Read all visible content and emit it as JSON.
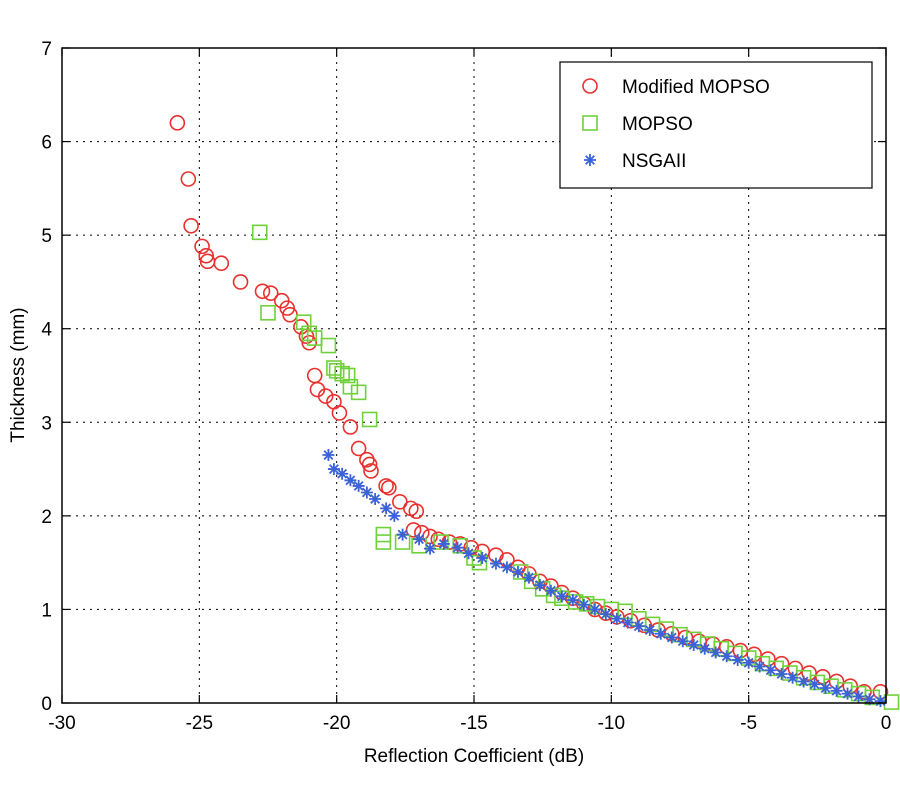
{
  "chart_data": {
    "type": "scatter",
    "title": "",
    "xlabel": "Reflection Coefficient (dB)",
    "ylabel": "Thickness (mm)",
    "xlim": [
      -30,
      0
    ],
    "ylim": [
      0,
      7
    ],
    "xticks": [
      -30,
      -25,
      -20,
      -15,
      -10,
      -5,
      0
    ],
    "yticks": [
      0,
      1,
      2,
      3,
      4,
      5,
      6,
      7
    ],
    "xtick_labels": [
      "-30",
      "-25",
      "-20",
      "-15",
      "-10",
      "-5",
      "0"
    ],
    "ytick_labels": [
      "0",
      "1",
      "2",
      "3",
      "4",
      "5",
      "6",
      "7"
    ],
    "grid": true,
    "legend_position": "top-right",
    "series": [
      {
        "name": "Modified MOPSO",
        "marker": "circle",
        "color": "#e8312f",
        "points": [
          [
            -25.8,
            6.2
          ],
          [
            -25.4,
            5.6
          ],
          [
            -25.3,
            5.1
          ],
          [
            -24.9,
            4.88
          ],
          [
            -24.75,
            4.78
          ],
          [
            -24.7,
            4.72
          ],
          [
            -24.2,
            4.7
          ],
          [
            -23.5,
            4.5
          ],
          [
            -22.7,
            4.4
          ],
          [
            -22.4,
            4.38
          ],
          [
            -22.0,
            4.3
          ],
          [
            -21.8,
            4.22
          ],
          [
            -21.7,
            4.15
          ],
          [
            -21.3,
            4.02
          ],
          [
            -21.1,
            3.92
          ],
          [
            -21.0,
            3.85
          ],
          [
            -20.8,
            3.5
          ],
          [
            -20.7,
            3.35
          ],
          [
            -20.4,
            3.28
          ],
          [
            -20.1,
            3.22
          ],
          [
            -19.9,
            3.1
          ],
          [
            -19.5,
            2.95
          ],
          [
            -19.2,
            2.72
          ],
          [
            -18.9,
            2.6
          ],
          [
            -18.8,
            2.55
          ],
          [
            -18.75,
            2.48
          ],
          [
            -18.2,
            2.32
          ],
          [
            -18.1,
            2.3
          ],
          [
            -17.7,
            2.15
          ],
          [
            -17.3,
            2.08
          ],
          [
            -17.1,
            2.05
          ],
          [
            -17.2,
            1.85
          ],
          [
            -16.9,
            1.82
          ],
          [
            -16.6,
            1.78
          ],
          [
            -16.3,
            1.75
          ],
          [
            -15.9,
            1.72
          ],
          [
            -15.5,
            1.7
          ],
          [
            -15.1,
            1.66
          ],
          [
            -14.7,
            1.62
          ],
          [
            -14.2,
            1.58
          ],
          [
            -13.8,
            1.53
          ],
          [
            -13.4,
            1.45
          ],
          [
            -13.0,
            1.38
          ],
          [
            -12.6,
            1.3
          ],
          [
            -12.2,
            1.25
          ],
          [
            -11.8,
            1.18
          ],
          [
            -11.4,
            1.12
          ],
          [
            -11.0,
            1.06
          ],
          [
            -10.6,
            1.0
          ],
          [
            -10.2,
            0.96
          ],
          [
            -9.8,
            0.92
          ],
          [
            -9.3,
            0.88
          ],
          [
            -8.8,
            0.83
          ],
          [
            -8.3,
            0.78
          ],
          [
            -7.8,
            0.74
          ],
          [
            -7.3,
            0.7
          ],
          [
            -6.8,
            0.66
          ],
          [
            -6.3,
            0.63
          ],
          [
            -5.8,
            0.6
          ],
          [
            -5.3,
            0.56
          ],
          [
            -4.8,
            0.52
          ],
          [
            -4.3,
            0.47
          ],
          [
            -3.8,
            0.42
          ],
          [
            -3.3,
            0.37
          ],
          [
            -2.8,
            0.32
          ],
          [
            -2.3,
            0.28
          ],
          [
            -1.8,
            0.23
          ],
          [
            -1.3,
            0.18
          ],
          [
            -0.8,
            0.12
          ],
          [
            -0.2,
            0.12
          ]
        ]
      },
      {
        "name": "MOPSO",
        "marker": "square",
        "color": "#6fd13a",
        "points": [
          [
            -22.8,
            5.03
          ],
          [
            -22.5,
            4.17
          ],
          [
            -21.2,
            4.07
          ],
          [
            -21.0,
            3.95
          ],
          [
            -20.8,
            3.9
          ],
          [
            -20.3,
            3.82
          ],
          [
            -20.1,
            3.58
          ],
          [
            -20.0,
            3.55
          ],
          [
            -19.8,
            3.52
          ],
          [
            -19.6,
            3.5
          ],
          [
            -19.5,
            3.38
          ],
          [
            -19.2,
            3.32
          ],
          [
            -18.8,
            3.03
          ],
          [
            -18.3,
            1.8
          ],
          [
            -18.3,
            1.72
          ],
          [
            -17.6,
            1.72
          ],
          [
            -17.0,
            1.68
          ],
          [
            -16.2,
            1.72
          ],
          [
            -15.5,
            1.68
          ],
          [
            -15.0,
            1.55
          ],
          [
            -14.8,
            1.5
          ],
          [
            -13.3,
            1.4
          ],
          [
            -12.9,
            1.3
          ],
          [
            -12.5,
            1.22
          ],
          [
            -12.1,
            1.15
          ],
          [
            -11.8,
            1.12
          ],
          [
            -11.3,
            1.08
          ],
          [
            -10.9,
            1.06
          ],
          [
            -10.5,
            1.03
          ],
          [
            -10.0,
            1.0
          ],
          [
            -9.5,
            0.98
          ],
          [
            -9.0,
            0.9
          ],
          [
            -8.5,
            0.84
          ],
          [
            -8.0,
            0.79
          ],
          [
            -7.5,
            0.73
          ],
          [
            -7.0,
            0.68
          ],
          [
            -6.5,
            0.63
          ],
          [
            -6.0,
            0.58
          ],
          [
            -5.5,
            0.53
          ],
          [
            -5.0,
            0.48
          ],
          [
            -4.5,
            0.42
          ],
          [
            -4.0,
            0.37
          ],
          [
            -3.5,
            0.32
          ],
          [
            -3.0,
            0.27
          ],
          [
            -2.5,
            0.22
          ],
          [
            -2.0,
            0.18
          ],
          [
            -1.5,
            0.14
          ],
          [
            -1.0,
            0.1
          ],
          [
            -0.5,
            0.06
          ],
          [
            0.2,
            0.01
          ]
        ]
      },
      {
        "name": "NSGAII",
        "marker": "star",
        "color": "#3b63d6",
        "points": [
          [
            -20.3,
            2.65
          ],
          [
            -20.1,
            2.5
          ],
          [
            -19.8,
            2.45
          ],
          [
            -19.5,
            2.38
          ],
          [
            -19.2,
            2.32
          ],
          [
            -18.9,
            2.25
          ],
          [
            -18.6,
            2.18
          ],
          [
            -18.2,
            2.08
          ],
          [
            -17.9,
            2.0
          ],
          [
            -17.6,
            1.8
          ],
          [
            -17.0,
            1.75
          ],
          [
            -16.6,
            1.65
          ],
          [
            -16.1,
            1.7
          ],
          [
            -15.6,
            1.66
          ],
          [
            -15.2,
            1.6
          ],
          [
            -14.7,
            1.55
          ],
          [
            -14.2,
            1.49
          ],
          [
            -13.8,
            1.45
          ],
          [
            -13.4,
            1.4
          ],
          [
            -13.0,
            1.34
          ],
          [
            -12.6,
            1.26
          ],
          [
            -12.2,
            1.2
          ],
          [
            -11.8,
            1.14
          ],
          [
            -11.4,
            1.1
          ],
          [
            -11.0,
            1.05
          ],
          [
            -10.6,
            1.0
          ],
          [
            -10.2,
            0.95
          ],
          [
            -9.8,
            0.9
          ],
          [
            -9.4,
            0.86
          ],
          [
            -9.0,
            0.82
          ],
          [
            -8.6,
            0.78
          ],
          [
            -8.2,
            0.74
          ],
          [
            -7.8,
            0.7
          ],
          [
            -7.4,
            0.66
          ],
          [
            -7.0,
            0.62
          ],
          [
            -6.6,
            0.58
          ],
          [
            -6.2,
            0.54
          ],
          [
            -5.8,
            0.5
          ],
          [
            -5.4,
            0.46
          ],
          [
            -5.0,
            0.43
          ],
          [
            -4.6,
            0.39
          ],
          [
            -4.2,
            0.35
          ],
          [
            -3.8,
            0.31
          ],
          [
            -3.4,
            0.27
          ],
          [
            -3.0,
            0.23
          ],
          [
            -2.6,
            0.2
          ],
          [
            -2.2,
            0.16
          ],
          [
            -1.8,
            0.13
          ],
          [
            -1.4,
            0.1
          ],
          [
            -1.0,
            0.07
          ],
          [
            -0.6,
            0.04
          ],
          [
            -0.2,
            0.02
          ]
        ]
      }
    ]
  }
}
